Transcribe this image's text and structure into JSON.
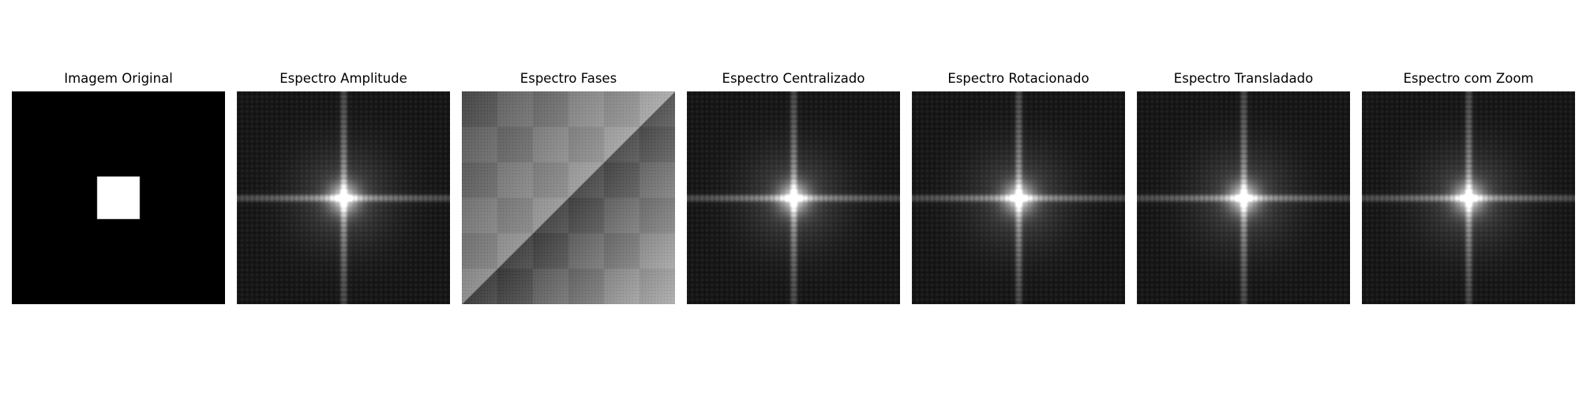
{
  "panels": [
    {
      "title": "Imagem Original",
      "kind": "original"
    },
    {
      "title": "Espectro Amplitude",
      "kind": "spectrum"
    },
    {
      "title": "Espectro Fases",
      "kind": "phase"
    },
    {
      "title": "Espectro Centralizado",
      "kind": "spectrum"
    },
    {
      "title": "Espectro Rotacionado",
      "kind": "spectrum"
    },
    {
      "title": "Espectro Transladado",
      "kind": "spectrum"
    },
    {
      "title": "Espectro com Zoom",
      "kind": "spectrum"
    }
  ]
}
